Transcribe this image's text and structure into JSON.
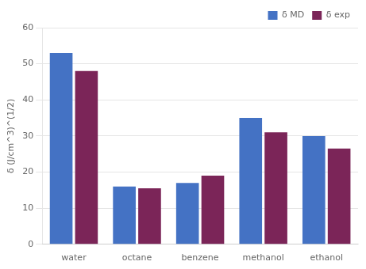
{
  "chart_data": {
    "type": "bar",
    "categories": [
      "water",
      "octane",
      "benzene",
      "methanol",
      "ethanol"
    ],
    "series": [
      {
        "name": "δ MD",
        "color": "#4472C4",
        "values": [
          53,
          16,
          17,
          35,
          30
        ]
      },
      {
        "name": "δ exp",
        "color": "#7B2558",
        "values": [
          48,
          15.5,
          19,
          31,
          26.5
        ]
      }
    ],
    "ylabel": "δ (J/cm^3)^(1/2)",
    "ylim": [
      0,
      60
    ],
    "yticks": [
      0,
      10,
      20,
      30,
      40,
      50,
      60
    ],
    "grid": true,
    "legend": "upper right"
  }
}
